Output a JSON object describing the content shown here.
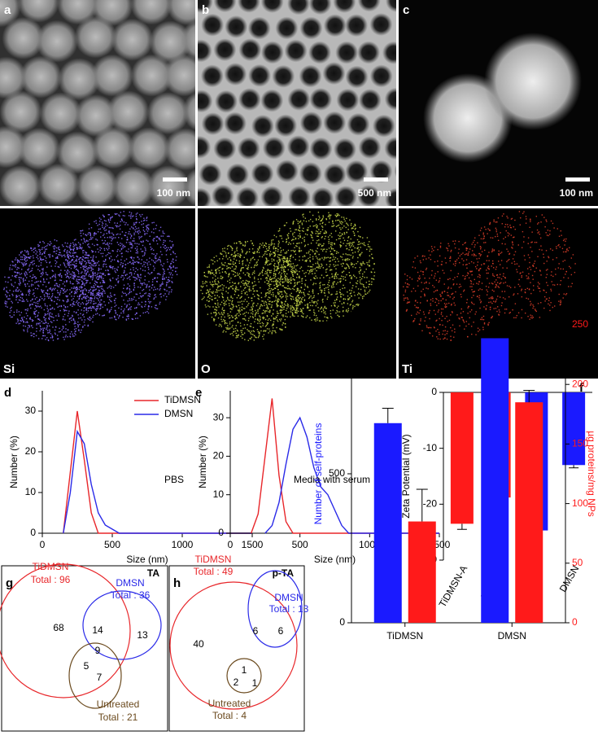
{
  "figure": {
    "images": [
      {
        "label": "a",
        "scale": "100 nm"
      },
      {
        "label": "b",
        "scale": "500 nm"
      },
      {
        "label": "c",
        "scale": "100 nm"
      },
      {
        "label": "Si"
      },
      {
        "label": "O"
      },
      {
        "label": "Ti"
      }
    ]
  },
  "chart_data": [
    {
      "panel": "d",
      "type": "line",
      "xlabel": "Size (nm)",
      "ylabel": "Number (%)",
      "annotation": "PBS",
      "xlim": [
        0,
        1500
      ],
      "xticks": [
        0,
        500,
        1000,
        1500
      ],
      "ylim": [
        0,
        35
      ],
      "yticks": [
        0,
        10,
        20,
        30
      ],
      "legend": "top-right",
      "series": [
        {
          "name": "TiDMSN",
          "color": "#e8262a",
          "x": [
            150,
            200,
            250,
            300,
            350,
            400,
            1500
          ],
          "values": [
            0,
            15,
            30,
            18,
            5,
            0,
            0
          ]
        },
        {
          "name": "DMSN",
          "color": "#2a2ae8",
          "x": [
            150,
            200,
            250,
            300,
            350,
            400,
            450,
            500,
            550,
            1500
          ],
          "values": [
            0,
            10,
            25,
            22,
            12,
            5,
            2,
            1,
            0,
            0
          ]
        }
      ]
    },
    {
      "panel": "e",
      "type": "line",
      "xlabel": "Size (nm)",
      "ylabel": "Number (%)",
      "annotation": "Media with serum",
      "xlim": [
        0,
        1500
      ],
      "xticks": [
        0,
        500,
        1000,
        1500
      ],
      "ylim": [
        0,
        37
      ],
      "yticks": [
        0,
        10,
        20,
        30
      ],
      "series": [
        {
          "color": "#e8262a",
          "x": [
            150,
            200,
            250,
            300,
            350,
            400,
            450,
            1500
          ],
          "values": [
            0,
            5,
            20,
            35,
            15,
            3,
            0,
            0
          ]
        },
        {
          "color": "#2a2ae8",
          "x": [
            250,
            300,
            350,
            400,
            450,
            500,
            550,
            600,
            650,
            700,
            750,
            800,
            850,
            1500
          ],
          "values": [
            0,
            2,
            8,
            18,
            27,
            30,
            25,
            17,
            12,
            10,
            6,
            2,
            0,
            0
          ]
        }
      ]
    },
    {
      "panel": "f",
      "type": "bar",
      "ylabel": "Zeta Potential (mV)",
      "categories": [
        "TiDMSN-A",
        "TiDMSN",
        "DMSN-A",
        "DMSN"
      ],
      "values": [
        -23.5,
        -18.8,
        -24.7,
        -13
      ],
      "errors": [
        1,
        0.7,
        0.6,
        0.5
      ],
      "colors": [
        "#ff1a1a",
        "#ff1a1a",
        "#1a1aff",
        "#1a1aff"
      ],
      "ylim": [
        -30,
        0
      ],
      "yticks": [
        0,
        -10,
        -20,
        -30
      ]
    },
    {
      "panel": "i",
      "type": "groupbar",
      "ylabel": "Number of self-proteins",
      "y2label": "µg proteins/mg NPs",
      "categories": [
        "TiDMSN",
        "DMSN"
      ],
      "ylim": [
        0,
        1000
      ],
      "yticks": [
        0,
        500,
        1000
      ],
      "y2lim": [
        0,
        250
      ],
      "y2ticks": [
        0,
        50,
        100,
        150,
        200,
        250
      ],
      "series": [
        {
          "color": "#1a1aff",
          "values": [
            670,
            955
          ],
          "errors": [
            50,
            10
          ]
        },
        {
          "color": "#ff1a1a",
          "axis": "y2",
          "values": [
            85,
            185
          ],
          "errors": [
            27,
            10
          ]
        }
      ]
    }
  ],
  "venn": [
    {
      "panel": "g",
      "title": "TA",
      "sets": [
        {
          "name": "TiDMSN",
          "total": "Total : 96",
          "color": "#e8262a"
        },
        {
          "name": "DMSN",
          "total": "Total : 36",
          "color": "#2a2ae8"
        },
        {
          "name": "Untreated",
          "total": "Total : 21",
          "color": "#6b4a1e"
        }
      ],
      "regions": [
        68,
        14,
        13,
        9,
        5,
        7
      ]
    },
    {
      "panel": "h",
      "title": "p-TA",
      "sets": [
        {
          "name": "TiDMSN",
          "total": "Total : 49",
          "color": "#e8262a"
        },
        {
          "name": "DMSN",
          "total": "Total : 13",
          "color": "#2a2ae8"
        },
        {
          "name": "Untreated",
          "total": "Total : 4",
          "color": "#6b4a1e"
        }
      ],
      "regions": [
        40,
        6,
        6,
        1,
        2,
        1
      ]
    }
  ]
}
